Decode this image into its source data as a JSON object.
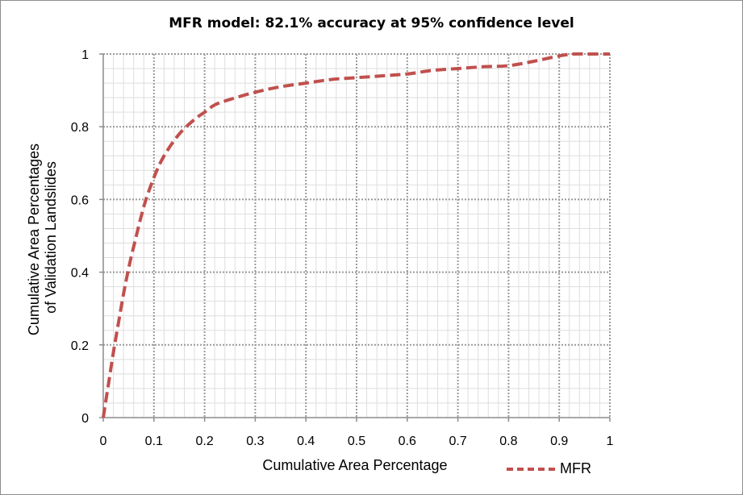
{
  "chart_data": {
    "type": "line",
    "title": "MFR model: 82.1% accuracy at 95% confidence level",
    "xlabel": "Cumulative Area Percentage",
    "ylabel_lines": [
      "Cumulative Area Percentages",
      "of Validation Landslides"
    ],
    "xlim": [
      0,
      1
    ],
    "ylim": [
      0,
      1
    ],
    "x_ticks": [
      "0",
      "0.1",
      "0.2",
      "0.3",
      "0.4",
      "0.5",
      "0.6",
      "0.7",
      "0.8",
      "0.9",
      "1"
    ],
    "y_ticks": [
      "0",
      "0.2",
      "0.4",
      "0.6",
      "0.8",
      "1"
    ],
    "grid": true,
    "legend_position": "bottom-right",
    "series": [
      {
        "name": "MFR",
        "color": "#c0504d",
        "x": [
          0,
          0.01,
          0.02,
          0.03,
          0.04,
          0.05,
          0.06,
          0.08,
          0.1,
          0.12,
          0.15,
          0.18,
          0.2,
          0.22,
          0.25,
          0.3,
          0.35,
          0.4,
          0.45,
          0.5,
          0.55,
          0.6,
          0.65,
          0.7,
          0.75,
          0.8,
          0.85,
          0.9,
          0.93,
          0.96,
          1.0
        ],
        "y": [
          0,
          0.09,
          0.18,
          0.26,
          0.34,
          0.41,
          0.47,
          0.58,
          0.66,
          0.72,
          0.78,
          0.82,
          0.84,
          0.86,
          0.875,
          0.895,
          0.91,
          0.92,
          0.93,
          0.935,
          0.94,
          0.945,
          0.955,
          0.96,
          0.965,
          0.968,
          0.98,
          0.995,
          1.0,
          1.0,
          1.0
        ]
      }
    ]
  }
}
